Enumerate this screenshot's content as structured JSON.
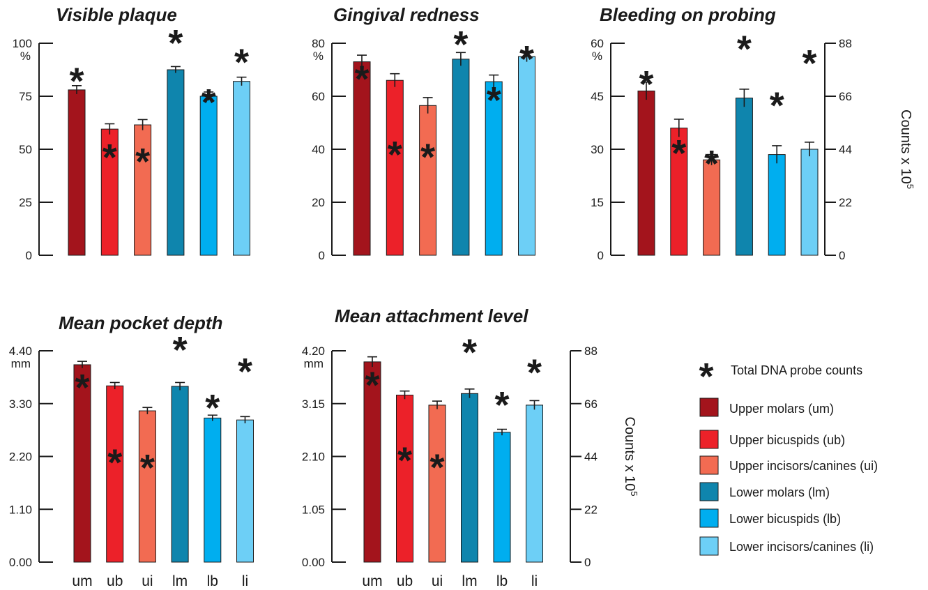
{
  "colors": {
    "um": "#a3141c",
    "ub": "#ec2129",
    "ui": "#f26b52",
    "lm": "#0f85ad",
    "lb": "#00aeef",
    "li": "#6dcff6",
    "star": "#231f20",
    "axis": "#1a1a1a"
  },
  "chart_data": [
    {
      "type": "bar",
      "title": "Visible plaque",
      "unit": "%",
      "categories": [
        "um",
        "ub",
        "ui",
        "lm",
        "lb",
        "li"
      ],
      "show_category_labels": false,
      "ylim": [
        0,
        100
      ],
      "yticks": [
        "0",
        "25",
        "50",
        "75",
        "100"
      ],
      "values": [
        78,
        59.5,
        61.5,
        87.5,
        75,
        82
      ],
      "errors": [
        2,
        2.5,
        2.5,
        1.5,
        2,
        2
      ],
      "stars": [
        84,
        48,
        46,
        102,
        74,
        93
      ]
    },
    {
      "type": "bar",
      "title": "Gingival redness",
      "unit": "%",
      "categories": [
        "um",
        "ub",
        "ui",
        "lm",
        "lb",
        "li"
      ],
      "show_category_labels": false,
      "ylim": [
        0,
        80
      ],
      "yticks": [
        "0",
        "20",
        "40",
        "60",
        "80"
      ],
      "values": [
        73,
        66,
        56.5,
        74,
        65.5,
        75
      ],
      "errors": [
        2.5,
        2.5,
        3,
        2.5,
        2.5,
        2
      ],
      "stars": [
        68,
        39.5,
        38.5,
        81,
        60,
        75.5
      ]
    },
    {
      "type": "bar",
      "title": "Bleeding on probing",
      "unit": "%",
      "categories": [
        "um",
        "ub",
        "ui",
        "lm",
        "lb",
        "li"
      ],
      "show_category_labels": false,
      "ylim": [
        0,
        60
      ],
      "yticks": [
        "0",
        "15",
        "30",
        "45",
        "60"
      ],
      "values": [
        46.5,
        36,
        27,
        44.5,
        28.5,
        30
      ],
      "errors": [
        2.5,
        2.5,
        1.5,
        2.5,
        2.5,
        2
      ],
      "stars": [
        49.5,
        30,
        27,
        59.5,
        43.5,
        55.5
      ],
      "y2ticks": [
        "0",
        "22",
        "44",
        "66",
        "88"
      ],
      "y2label": "Counts x 10",
      "y2label_sup": "5"
    },
    {
      "type": "bar",
      "title": "Mean pocket depth",
      "unit": "mm",
      "categories": [
        "um",
        "ub",
        "ui",
        "lm",
        "lb",
        "li"
      ],
      "show_category_labels": true,
      "ylim": [
        0,
        4.4
      ],
      "yticks": [
        "0.00",
        "1.10",
        "2.20",
        "3.30",
        "4.40"
      ],
      "values": [
        4.11,
        3.67,
        3.15,
        3.66,
        3.0,
        2.96
      ],
      "errors": [
        0.07,
        0.07,
        0.07,
        0.08,
        0.06,
        0.07
      ],
      "stars": [
        3.72,
        2.16,
        2.05,
        4.5,
        3.3,
        4.05
      ]
    },
    {
      "type": "bar",
      "title": "Mean attachment level",
      "unit": "mm",
      "categories": [
        "um",
        "ub",
        "ui",
        "lm",
        "lb",
        "li"
      ],
      "show_category_labels": true,
      "ylim": [
        0,
        4.2
      ],
      "yticks": [
        "0.00",
        "1.05",
        "2.10",
        "3.15",
        "4.20"
      ],
      "values": [
        3.98,
        3.32,
        3.12,
        3.35,
        2.58,
        3.12
      ],
      "errors": [
        0.1,
        0.08,
        0.08,
        0.09,
        0.06,
        0.09
      ],
      "stars": [
        3.6,
        2.1,
        1.96,
        4.25,
        3.2,
        3.85
      ],
      "y2ticks": [
        "0",
        "22",
        "44",
        "66",
        "88"
      ],
      "y2label": "Counts x 10",
      "y2label_sup": "5"
    }
  ],
  "legend": {
    "star_label": "Total DNA probe counts",
    "items": [
      {
        "key": "um",
        "label": "Upper molars (um)"
      },
      {
        "key": "ub",
        "label": "Upper bicuspids (ub)"
      },
      {
        "key": "ui",
        "label": "Upper incisors/canines (ui)"
      },
      {
        "key": "lm",
        "label": "Lower molars (lm)"
      },
      {
        "key": "lb",
        "label": "Lower bicuspids (lb)"
      },
      {
        "key": "li",
        "label": "Lower incisors/canines (li)"
      }
    ]
  }
}
